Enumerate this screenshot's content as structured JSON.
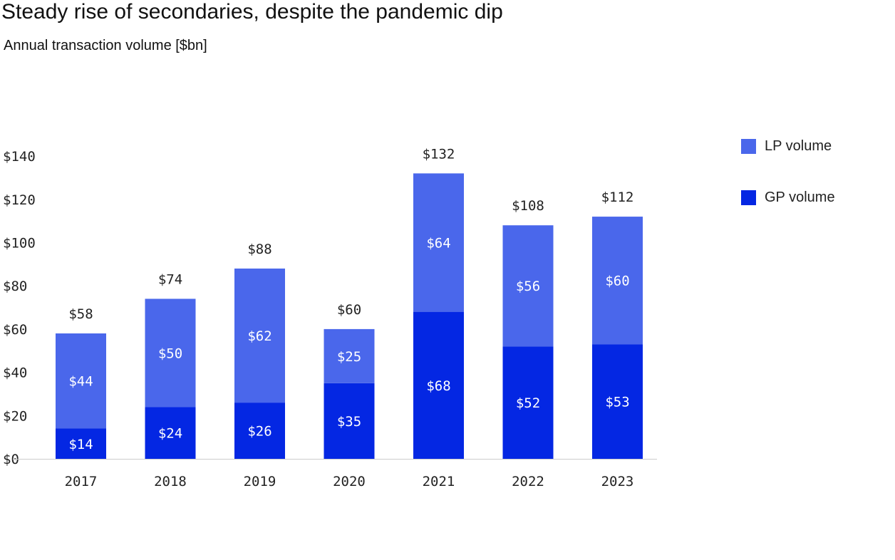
{
  "title": "Steady rise of secondaries, despite the pandemic dip",
  "subtitle": "Annual transaction volume [$bn]",
  "legend": {
    "lp_label": "LP volume",
    "gp_label": "GP volume"
  },
  "colors": {
    "lp": "#4a67eb",
    "gp": "#0427e3",
    "axis": "#cccccc",
    "text": "#222222"
  },
  "chart_data": {
    "type": "bar",
    "stacked": true,
    "title": "Steady rise of secondaries, despite the pandemic dip",
    "subtitle": "Annual transaction volume [$bn]",
    "xlabel": "",
    "ylabel": "",
    "ylim": [
      0,
      140
    ],
    "yticks": [
      0,
      20,
      40,
      60,
      80,
      100,
      120,
      140
    ],
    "ytick_labels": [
      "$0",
      "$20",
      "$40",
      "$60",
      "$80",
      "$100",
      "$120",
      "$140"
    ],
    "grid": false,
    "legend_position": "top-right",
    "categories": [
      "2017",
      "2018",
      "2019",
      "2020",
      "2021",
      "2022",
      "2023"
    ],
    "series": [
      {
        "name": "GP volume",
        "values": [
          14,
          24,
          26,
          35,
          68,
          52,
          53
        ],
        "labels": [
          "$14",
          "$24",
          "$26",
          "$35",
          "$68",
          "$52",
          "$53"
        ]
      },
      {
        "name": "LP volume",
        "values": [
          44,
          50,
          62,
          25,
          64,
          56,
          60
        ],
        "labels": [
          "$44",
          "$50",
          "$62",
          "$25",
          "$64",
          "$56",
          "$60"
        ]
      }
    ],
    "totals": [
      58,
      74,
      88,
      60,
      132,
      108,
      112
    ],
    "total_labels": [
      "$58",
      "$74",
      "$88",
      "$60",
      "$132",
      "$108",
      "$112"
    ]
  }
}
